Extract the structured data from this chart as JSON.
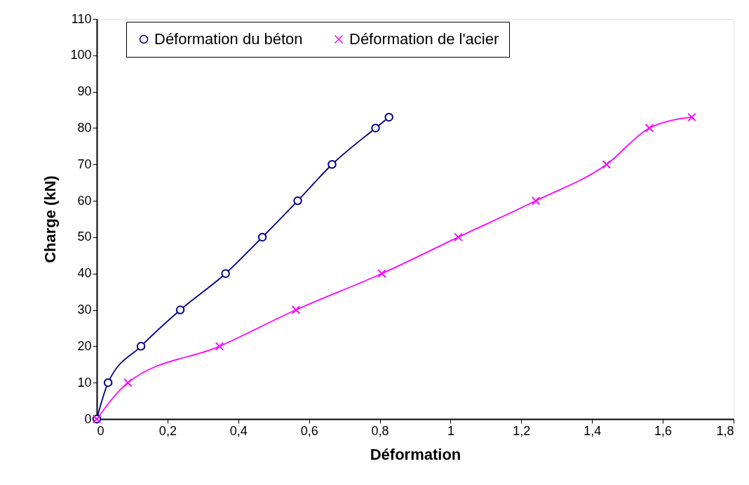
{
  "chart_data": {
    "type": "line",
    "xlabel": "Déformation",
    "ylabel": "Charge (kN)",
    "xlim": [
      0,
      1.8
    ],
    "xticks": [
      0,
      {
        "value": 0.2,
        "label": "0,2"
      },
      {
        "value": 0.4,
        "label": "0,4"
      },
      {
        "value": 0.6,
        "label": "0,6"
      },
      {
        "value": 0.8,
        "label": "0,8"
      },
      1,
      {
        "value": 1.2,
        "label": "1,2"
      },
      {
        "value": 1.4,
        "label": "1,4"
      },
      {
        "value": 1.6,
        "label": "1,6"
      },
      {
        "value": 1.8,
        "label": "1,8"
      }
    ],
    "ylim": [
      0,
      110
    ],
    "yticks": [
      0,
      10,
      20,
      30,
      40,
      50,
      60,
      70,
      80,
      90,
      100,
      110
    ],
    "grid": false,
    "legend": "top",
    "line_style": "solid",
    "series": [
      {
        "name": "Déformation du béton",
        "color": "#000080",
        "marker": "circle",
        "x": [
          0,
          0.032,
          0.125,
          0.236,
          0.364,
          0.468,
          0.568,
          0.665,
          0.788,
          0.826
        ],
        "values": [
          0,
          10,
          20,
          30,
          40,
          50,
          60,
          70,
          80,
          83
        ]
      },
      {
        "name": "Déformation de l'acier",
        "color": "#ff00ff",
        "marker": "cross",
        "x": [
          0,
          0.088,
          0.347,
          0.563,
          0.806,
          1.022,
          1.241,
          1.441,
          1.562,
          1.682
        ],
        "values": [
          0,
          10,
          20,
          30,
          40,
          50,
          60,
          70,
          80,
          83
        ]
      }
    ]
  }
}
